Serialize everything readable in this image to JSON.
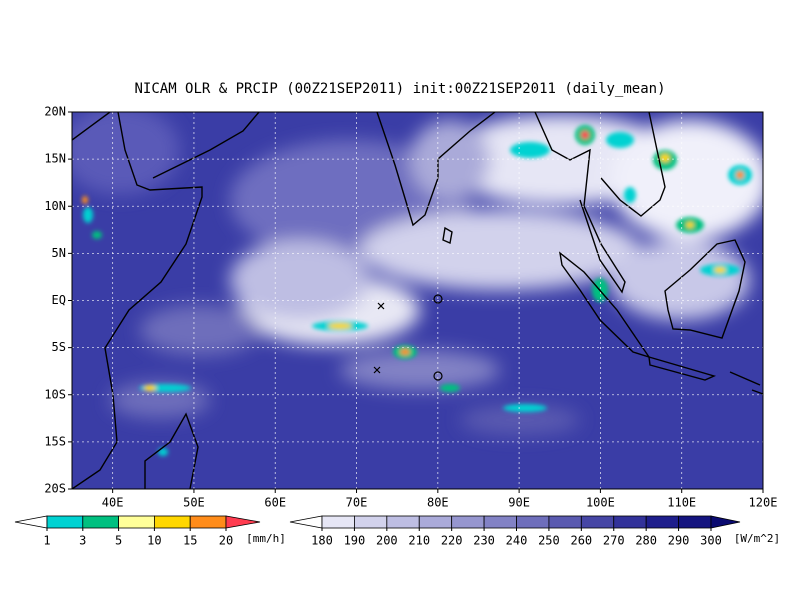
{
  "title": "NICAM OLR & PRCIP (00Z21SEP2011) init:00Z21SEP2011 (daily_mean)",
  "map": {
    "lonlim": [
      35,
      120
    ],
    "latlim": [
      -20,
      20
    ],
    "xticks": [
      {
        "value": 40,
        "label": "40E"
      },
      {
        "value": 50,
        "label": "50E"
      },
      {
        "value": 60,
        "label": "60E"
      },
      {
        "value": 70,
        "label": "70E"
      },
      {
        "value": 80,
        "label": "80E"
      },
      {
        "value": 90,
        "label": "90E"
      },
      {
        "value": 100,
        "label": "100E"
      },
      {
        "value": 110,
        "label": "110E"
      },
      {
        "value": 120,
        "label": "120E"
      }
    ],
    "yticks": [
      {
        "value": 20,
        "label": "20N"
      },
      {
        "value": 15,
        "label": "15N"
      },
      {
        "value": 10,
        "label": "10N"
      },
      {
        "value": 5,
        "label": "5N"
      },
      {
        "value": 0,
        "label": "EQ"
      },
      {
        "value": -5,
        "label": "5S"
      },
      {
        "value": -10,
        "label": "10S"
      },
      {
        "value": -15,
        "label": "15S"
      },
      {
        "value": -20,
        "label": "20S"
      }
    ]
  },
  "precip_colorbar": {
    "ticks": [
      1,
      3,
      5,
      10,
      15,
      20
    ],
    "unit": "[mm/h]",
    "colors": [
      "#ffffff",
      "#00d2d2",
      "#00c080",
      "#ffff99",
      "#ffd700",
      "#ff8c1a",
      "#ff3c50"
    ]
  },
  "olr_colorbar": {
    "ticks": [
      180,
      190,
      200,
      210,
      220,
      230,
      240,
      250,
      260,
      270,
      280,
      290,
      300
    ],
    "unit": "[W/m^2]",
    "colors": [
      "#ffffff",
      "#e6e6f5",
      "#d2d2ec",
      "#bebee3",
      "#aaaad9",
      "#9696cf",
      "#8282c5",
      "#6e6ebb",
      "#5a5ab0",
      "#4646a5",
      "#32329a",
      "#1e1e8c",
      "#14147f",
      "#0a0a70"
    ]
  }
}
